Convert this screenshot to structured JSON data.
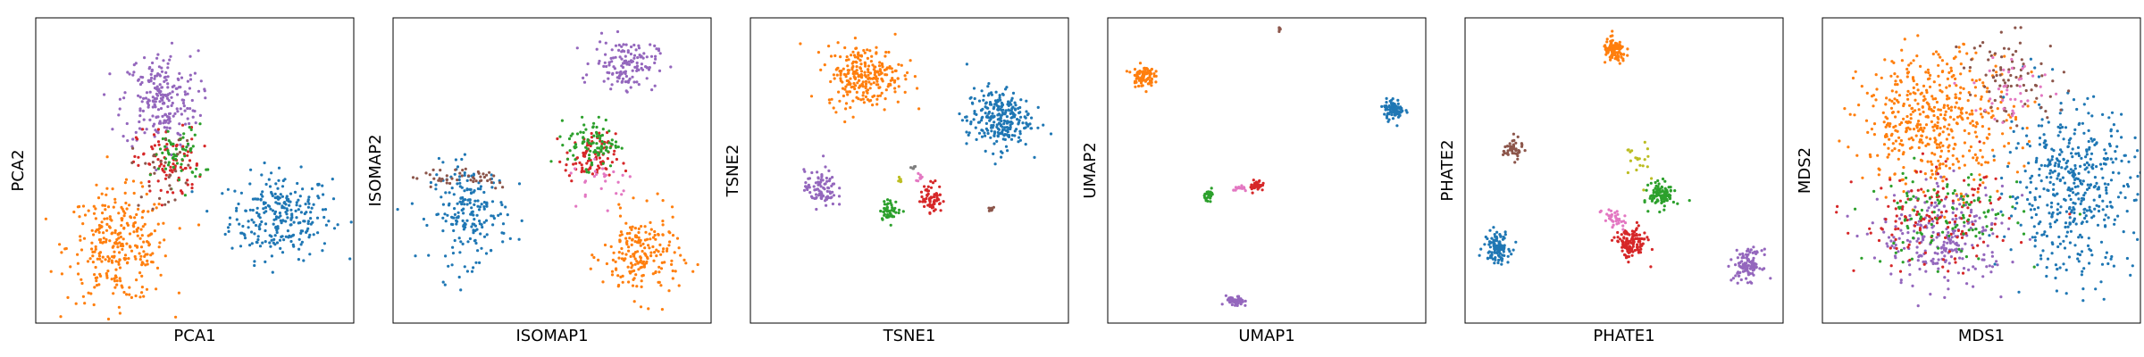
{
  "colors": {
    "blue": "#1f77b4",
    "orange": "#ff7f0e",
    "green": "#2ca02c",
    "red": "#d62728",
    "purple": "#9467bd",
    "brown": "#8c564b",
    "pink": "#e377c2",
    "olive": "#bcbd22",
    "gray": "#7f7f7f"
  },
  "chart_data": [
    {
      "type": "scatter",
      "title": "",
      "xlabel": "PCA1",
      "ylabel": "PCA2",
      "xlim": [
        0,
        100
      ],
      "ylim": [
        0,
        100
      ],
      "ticks": "none",
      "grid": false,
      "legend": "none",
      "clusters": [
        {
          "color": "blue",
          "x": 77,
          "y": 35,
          "sx": 8,
          "sy": 7,
          "n": 260
        },
        {
          "color": "orange",
          "x": 26,
          "y": 25,
          "sx": 8,
          "sy": 9,
          "n": 300
        },
        {
          "color": "purple",
          "x": 39,
          "y": 73,
          "sx": 6,
          "sy": 8,
          "n": 230
        },
        {
          "color": "red",
          "x": 42,
          "y": 52,
          "sx": 5,
          "sy": 6,
          "n": 90
        },
        {
          "color": "green",
          "x": 45,
          "y": 55,
          "sx": 4,
          "sy": 5,
          "n": 60
        },
        {
          "color": "brown",
          "x": 40,
          "y": 50,
          "sx": 5,
          "sy": 6,
          "n": 30
        }
      ]
    },
    {
      "type": "scatter",
      "title": "",
      "xlabel": "ISOMAP1",
      "ylabel": "ISOMAP2",
      "xlim": [
        0,
        100
      ],
      "ylim": [
        0,
        100
      ],
      "ticks": "none",
      "grid": false,
      "legend": "none",
      "clusters": [
        {
          "color": "blue",
          "x": 24,
          "y": 36,
          "sx": 6,
          "sy": 8,
          "n": 200
        },
        {
          "color": "orange",
          "x": 78,
          "y": 22,
          "sx": 6,
          "sy": 7,
          "n": 200
        },
        {
          "color": "purple",
          "x": 73,
          "y": 85,
          "sx": 5,
          "sy": 4,
          "n": 140
        },
        {
          "color": "red",
          "x": 62,
          "y": 54,
          "sx": 4,
          "sy": 4,
          "n": 90
        },
        {
          "color": "green",
          "x": 63,
          "y": 59,
          "sx": 4,
          "sy": 4,
          "n": 90
        },
        {
          "color": "brown",
          "x": 22,
          "y": 48,
          "sx": 9,
          "sy": 2,
          "n": 45
        },
        {
          "color": "pink",
          "x": 66,
          "y": 47,
          "sx": 5,
          "sy": 4,
          "n": 25
        }
      ]
    },
    {
      "type": "scatter",
      "title": "",
      "xlabel": "TSNE1",
      "ylabel": "TSNE2",
      "xlim": [
        0,
        100
      ],
      "ylim": [
        0,
        100
      ],
      "ticks": "none",
      "grid": false,
      "legend": "none",
      "clusters": [
        {
          "color": "orange",
          "x": 36,
          "y": 81,
          "sx": 6,
          "sy": 5,
          "n": 260
        },
        {
          "color": "blue",
          "x": 78,
          "y": 67,
          "sx": 5,
          "sy": 5,
          "n": 260
        },
        {
          "color": "purple",
          "x": 22,
          "y": 44,
          "sx": 2.5,
          "sy": 3,
          "n": 90
        },
        {
          "color": "red",
          "x": 57,
          "y": 41,
          "sx": 1.7,
          "sy": 2.5,
          "n": 70
        },
        {
          "color": "green",
          "x": 44,
          "y": 37,
          "sx": 1.6,
          "sy": 1.6,
          "n": 50
        },
        {
          "color": "pink",
          "x": 53,
          "y": 48,
          "sx": 0.8,
          "sy": 0.8,
          "n": 8
        },
        {
          "color": "olive",
          "x": 47,
          "y": 47,
          "sx": 0.5,
          "sy": 0.5,
          "n": 6
        },
        {
          "color": "brown",
          "x": 76,
          "y": 37,
          "sx": 0.5,
          "sy": 0.5,
          "n": 8
        },
        {
          "color": "gray",
          "x": 51,
          "y": 51,
          "sx": 0.6,
          "sy": 0.6,
          "n": 6
        }
      ]
    },
    {
      "type": "scatter",
      "title": "",
      "xlabel": "UMAP1",
      "ylabel": "UMAP2",
      "xlim": [
        0,
        100
      ],
      "ylim": [
        0,
        100
      ],
      "ticks": "none",
      "grid": false,
      "legend": "none",
      "clusters": [
        {
          "color": "orange",
          "x": 11,
          "y": 81,
          "sx": 1.7,
          "sy": 1.7,
          "n": 90
        },
        {
          "color": "blue",
          "x": 90,
          "y": 70,
          "sx": 1.6,
          "sy": 1.7,
          "n": 90
        },
        {
          "color": "purple",
          "x": 40,
          "y": 7,
          "sx": 1.4,
          "sy": 0.9,
          "n": 45
        },
        {
          "color": "red",
          "x": 47,
          "y": 45,
          "sx": 1.1,
          "sy": 1.0,
          "n": 35
        },
        {
          "color": "green",
          "x": 32,
          "y": 42,
          "sx": 0.8,
          "sy": 0.8,
          "n": 25
        },
        {
          "color": "pink",
          "x": 42,
          "y": 44,
          "sx": 1.2,
          "sy": 0.5,
          "n": 15
        },
        {
          "color": "brown",
          "x": 54,
          "y": 96,
          "sx": 0.3,
          "sy": 0.3,
          "n": 6
        }
      ]
    },
    {
      "type": "scatter",
      "title": "",
      "xlabel": "PHATE1",
      "ylabel": "PHATE2",
      "xlim": [
        0,
        100
      ],
      "ylim": [
        0,
        100
      ],
      "ticks": "none",
      "grid": false,
      "legend": "none",
      "clusters": [
        {
          "color": "orange",
          "x": 47,
          "y": 89,
          "sx": 1.8,
          "sy": 2.0,
          "n": 110
        },
        {
          "color": "blue",
          "x": 10,
          "y": 25,
          "sx": 2.0,
          "sy": 2.5,
          "n": 110
        },
        {
          "color": "purple",
          "x": 89,
          "y": 19,
          "sx": 2.2,
          "sy": 2.5,
          "n": 110
        },
        {
          "color": "red",
          "x": 52,
          "y": 26,
          "sx": 2.5,
          "sy": 2.5,
          "n": 130
        },
        {
          "color": "green",
          "x": 62,
          "y": 42,
          "sx": 2.0,
          "sy": 2.0,
          "n": 110
        },
        {
          "color": "brown",
          "x": 15,
          "y": 57,
          "sx": 1.5,
          "sy": 1.8,
          "n": 45
        },
        {
          "color": "pink",
          "x": 47,
          "y": 34,
          "sx": 2.0,
          "sy": 2.0,
          "n": 35
        },
        {
          "color": "olive",
          "x": 54,
          "y": 52,
          "sx": 2.0,
          "sy": 4.0,
          "n": 20
        }
      ]
    },
    {
      "type": "scatter",
      "title": "",
      "xlabel": "MDS1",
      "ylabel": "MDS2",
      "xlim": [
        0,
        100
      ],
      "ylim": [
        0,
        100
      ],
      "ticks": "none",
      "grid": false,
      "legend": "none",
      "clusters": [
        {
          "color": "orange",
          "x": 36,
          "y": 67,
          "sx": 12,
          "sy": 11,
          "n": 480
        },
        {
          "color": "blue",
          "x": 78,
          "y": 44,
          "sx": 10,
          "sy": 14,
          "n": 460
        },
        {
          "color": "purple",
          "x": 38,
          "y": 28,
          "sx": 10,
          "sy": 8,
          "n": 260
        },
        {
          "color": "red",
          "x": 35,
          "y": 33,
          "sx": 12,
          "sy": 8,
          "n": 140
        },
        {
          "color": "green",
          "x": 38,
          "y": 35,
          "sx": 12,
          "sy": 8,
          "n": 120
        },
        {
          "color": "brown",
          "x": 60,
          "y": 80,
          "sx": 8,
          "sy": 7,
          "n": 80
        },
        {
          "color": "pink",
          "x": 60,
          "y": 77,
          "sx": 6,
          "sy": 6,
          "n": 40
        }
      ]
    }
  ]
}
